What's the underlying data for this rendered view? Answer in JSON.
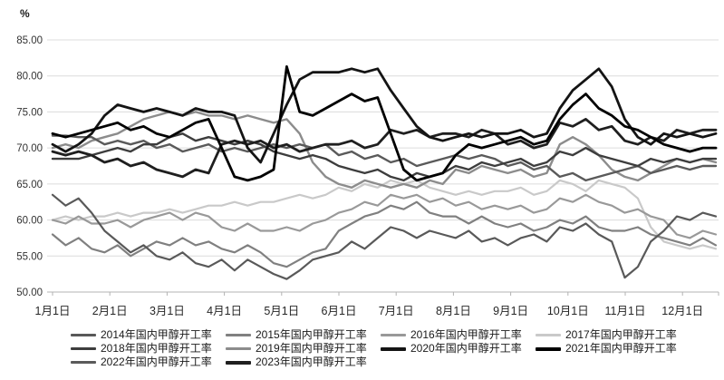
{
  "chart_data": {
    "type": "line",
    "title": "",
    "ylabel": "%",
    "xlabel": "",
    "ylim": [
      50,
      85
    ],
    "y_tick_labels": [
      "85.00",
      "80.00",
      "75.00",
      "70.00",
      "65.00",
      "60.00",
      "55.00",
      "50.00"
    ],
    "x_labels": [
      "1月1日",
      "2月1日",
      "3月1日",
      "4月1日",
      "5月1日",
      "6月1日",
      "7月1日",
      "8月1日",
      "9月1日",
      "10月1日",
      "11月1日",
      "12月1日"
    ],
    "grid": true,
    "legend_position": "bottom",
    "points_per_series": 52,
    "x_unit": "weekly points across one year",
    "axis_color": "#b3b3b3",
    "grid_color": "#dcdcdc",
    "text_color": "#333333",
    "series": [
      {
        "name": "2014年国内甲醇开工率",
        "color": "#595959",
        "width": 2.2,
        "values": [
          63.5,
          62,
          63,
          61,
          58.5,
          57,
          55.5,
          56.5,
          55,
          54.5,
          55.5,
          54,
          53.5,
          54.5,
          53,
          54.5,
          53.5,
          52.5,
          51.8,
          53,
          54.5,
          55,
          55.5,
          57,
          56,
          57.5,
          59,
          58.5,
          57.5,
          58.5,
          58,
          57.5,
          58.5,
          57,
          57.5,
          56.5,
          57.5,
          58,
          57,
          59,
          58.5,
          59.5,
          58,
          57,
          52,
          53.5,
          57,
          58.5,
          60.5,
          60,
          61,
          60.5
        ]
      },
      {
        "name": "2015年国内甲醇开工率",
        "color": "#808080",
        "width": 2.2,
        "values": [
          58,
          56.5,
          57.5,
          56,
          55.5,
          56.5,
          55,
          56,
          57,
          56.5,
          57.5,
          56.5,
          57,
          56,
          55.5,
          56.5,
          55.5,
          54,
          53.5,
          54.5,
          55.5,
          56,
          58.5,
          59.5,
          60.5,
          61,
          62,
          61.5,
          62.5,
          61,
          60.5,
          60.5,
          59.5,
          60.5,
          59.5,
          59,
          59.5,
          58.5,
          59,
          60,
          59.5,
          60.5,
          59,
          58.5,
          58.5,
          59,
          58,
          57.5,
          57,
          56.5,
          57.5,
          56.5
        ]
      },
      {
        "name": "2016年国内甲醇开工率",
        "color": "#999999",
        "width": 2.2,
        "values": [
          60,
          59.5,
          60.5,
          59.5,
          59.5,
          60,
          59,
          60,
          60.5,
          61,
          60,
          61,
          60.5,
          59,
          58.5,
          59.5,
          58.5,
          58.5,
          59,
          58.5,
          59.5,
          60,
          61,
          61.5,
          62.5,
          62,
          63.5,
          63,
          63.5,
          62.5,
          63,
          62,
          62.5,
          61.5,
          62,
          61.5,
          62,
          61,
          61.5,
          63,
          62.5,
          63.5,
          62.5,
          62,
          61,
          61.5,
          60.5,
          60,
          58,
          57.5,
          58.5,
          58
        ]
      },
      {
        "name": "2017年国内甲醇开工率",
        "color": "#c9c9c9",
        "width": 2.2,
        "values": [
          60,
          60.5,
          60,
          60.5,
          60.5,
          61,
          60.5,
          61,
          61,
          61.5,
          61,
          61.5,
          62,
          62,
          62.5,
          62,
          62.5,
          62.5,
          63,
          63.5,
          63,
          63.5,
          64.5,
          64,
          65,
          64.5,
          65.5,
          65,
          65.5,
          64.5,
          64,
          63.5,
          64,
          63.5,
          64,
          64,
          64.5,
          63.5,
          64,
          65.5,
          65,
          64,
          65.5,
          65,
          64.5,
          63,
          59,
          57,
          56.5,
          56,
          56.5,
          56
        ]
      },
      {
        "name": "2018年国内甲醇开工率",
        "color": "#3d3d3d",
        "width": 2.4,
        "values": [
          68.5,
          68.5,
          68.5,
          69,
          69.5,
          70,
          69.5,
          70.5,
          70.5,
          71.5,
          72,
          71,
          71.5,
          71,
          70.5,
          71,
          70.5,
          69.5,
          69,
          68.5,
          69,
          68.5,
          67.5,
          67,
          66.5,
          67,
          66,
          65.5,
          66.5,
          66,
          66.5,
          67.5,
          67,
          68,
          67.5,
          68,
          68.5,
          67.5,
          68,
          69.5,
          69,
          70,
          69,
          68.5,
          68,
          67.5,
          68.5,
          68,
          68.5,
          68,
          68.5,
          68.5
        ]
      },
      {
        "name": "2019年国内甲醇开工率",
        "color": "#8c8c8c",
        "width": 2.4,
        "values": [
          70,
          70.5,
          70,
          71,
          71.5,
          72,
          73,
          74,
          74.5,
          75,
          74.5,
          75,
          74.5,
          74.5,
          74,
          74.5,
          74,
          73.5,
          74,
          72,
          68,
          66,
          65,
          64.5,
          65.5,
          65,
          64.5,
          65,
          64.5,
          65.5,
          65,
          67,
          66.5,
          67.5,
          67,
          66.5,
          67,
          66,
          66.5,
          70.5,
          71.5,
          70.5,
          69,
          67,
          66,
          65.5,
          66.5,
          67.5,
          68.5,
          68,
          68.5,
          68
        ]
      },
      {
        "name": "2020年国内甲醇开工率",
        "color": "#141414",
        "width": 2.8,
        "values": [
          70.5,
          69.5,
          70.5,
          72,
          74.5,
          76,
          75.5,
          75,
          75.5,
          75,
          74.5,
          75.5,
          75,
          75,
          74.5,
          70,
          68,
          72,
          76,
          79.5,
          80.5,
          80.5,
          80.5,
          81,
          80.5,
          81,
          78,
          75.5,
          73,
          71.5,
          71,
          71.5,
          72,
          71.5,
          72,
          72,
          72.5,
          71.5,
          72,
          75.5,
          78,
          79.5,
          81,
          78.5,
          74,
          71.5,
          70.5,
          72,
          71.5,
          72,
          71.5,
          72
        ]
      },
      {
        "name": "2021年国内甲醇开工率",
        "color": "#000000",
        "width": 2.8,
        "values": [
          72,
          71.5,
          72,
          72.5,
          73,
          73.5,
          72.5,
          73,
          72,
          71.5,
          72.5,
          73.5,
          74,
          70,
          66,
          65.5,
          66,
          67,
          81.3,
          75,
          74.5,
          75.5,
          76.5,
          77.5,
          76.5,
          77,
          72,
          67,
          65.5,
          66,
          66.5,
          69,
          70.5,
          70,
          70.5,
          71,
          71.5,
          70.5,
          71,
          74,
          76,
          77.5,
          75.5,
          74.5,
          73,
          72.5,
          71.5,
          70.5,
          70,
          69.5,
          70,
          70
        ]
      },
      {
        "name": "2022年国内甲醇开工率",
        "color": "#5a5a5a",
        "width": 2.4,
        "values": [
          71.7,
          71.7,
          71.5,
          71.5,
          70.5,
          71,
          70.5,
          71,
          70,
          70.5,
          69.5,
          70,
          70.5,
          69.5,
          70,
          69.5,
          70,
          70.5,
          70,
          70.5,
          70,
          70.5,
          69,
          69.5,
          68.5,
          69,
          68,
          68.5,
          67.5,
          68,
          68.5,
          69,
          68.5,
          69,
          68.5,
          67.5,
          68,
          67,
          67.5,
          66,
          66.5,
          65.5,
          66,
          66.5,
          67,
          67.5,
          66.5,
          67,
          67.5,
          67,
          67.5,
          67.5
        ]
      },
      {
        "name": "2023年国内甲醇开工率",
        "color": "#1f1f1f",
        "width": 2.8,
        "values": [
          69.5,
          69,
          69.5,
          69,
          68,
          68.5,
          67.5,
          68,
          67,
          66.5,
          66,
          67,
          66.5,
          70.5,
          71,
          70.5,
          71,
          70,
          70.5,
          69.5,
          70,
          70.5,
          70.5,
          71,
          70,
          70.5,
          72.5,
          72,
          72.5,
          71.5,
          72,
          72,
          71.5,
          72.5,
          72,
          70.5,
          71,
          70,
          70.5,
          73.5,
          73,
          74,
          72.5,
          73,
          71,
          70.5,
          71.5,
          71,
          72.5,
          72,
          72.5,
          72.5
        ]
      }
    ]
  }
}
